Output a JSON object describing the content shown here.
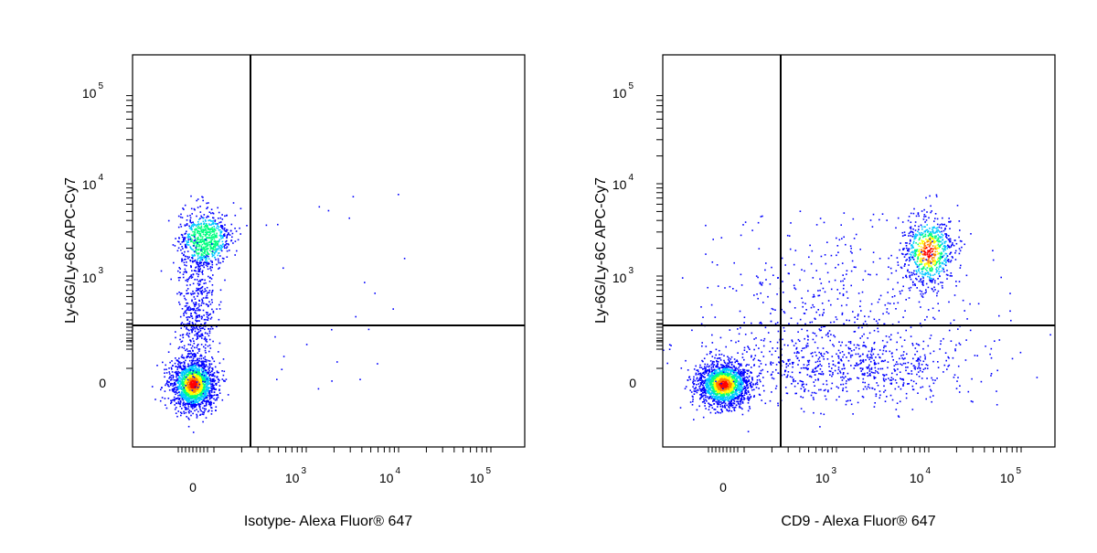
{
  "chart_data": [
    {
      "type": "scatter",
      "plot_style": "flow cytometry pseudocolor density dot plot",
      "xlabel": "Isotype- Alexa Fluor® 647",
      "ylabel": "Ly-6G/Ly-6C APC-Cy7",
      "x_scale": "biexponential",
      "y_scale": "biexponential",
      "x_ticks": [
        {
          "base": "0",
          "exp": ""
        },
        {
          "base": "10",
          "exp": "3"
        },
        {
          "base": "10",
          "exp": "4"
        },
        {
          "base": "10",
          "exp": "5"
        }
      ],
      "y_ticks": [
        {
          "base": "0",
          "exp": ""
        },
        {
          "base": "10",
          "exp": "3"
        },
        {
          "base": "10",
          "exp": "4"
        },
        {
          "base": "10",
          "exp": "5"
        }
      ],
      "quadrant_gate": {
        "x": 400,
        "y": 400
      },
      "populations": [
        {
          "x": 0,
          "y": 0,
          "density": "highest"
        },
        {
          "x": 0,
          "y": 2000,
          "density": "medium"
        }
      ],
      "grid": false
    },
    {
      "type": "scatter",
      "plot_style": "flow cytometry pseudocolor density dot plot",
      "xlabel": "CD9 - Alexa Fluor® 647",
      "ylabel": "Ly-6G/Ly-6C APC-Cy7",
      "x_scale": "biexponential",
      "y_scale": "biexponential",
      "x_ticks": [
        {
          "base": "0",
          "exp": ""
        },
        {
          "base": "10",
          "exp": "3"
        },
        {
          "base": "10",
          "exp": "4"
        },
        {
          "base": "10",
          "exp": "5"
        }
      ],
      "y_ticks": [
        {
          "base": "0",
          "exp": ""
        },
        {
          "base": "10",
          "exp": "3"
        },
        {
          "base": "10",
          "exp": "4"
        },
        {
          "base": "10",
          "exp": "5"
        }
      ],
      "quadrant_gate": {
        "x": 400,
        "y": 400
      },
      "populations": [
        {
          "x": 0,
          "y": 0,
          "density": "highest"
        },
        {
          "x": 10000,
          "y": 1500,
          "density": "medium"
        },
        {
          "x": 2000,
          "y": 0,
          "density": "low"
        }
      ],
      "grid": false
    }
  ],
  "colors": {
    "density_scale": [
      "#0000ff",
      "#00c8ff",
      "#00ff80",
      "#ffff00",
      "#ff8000",
      "#ff0000"
    ],
    "axis": "#000000",
    "gate_line": "#000000"
  }
}
